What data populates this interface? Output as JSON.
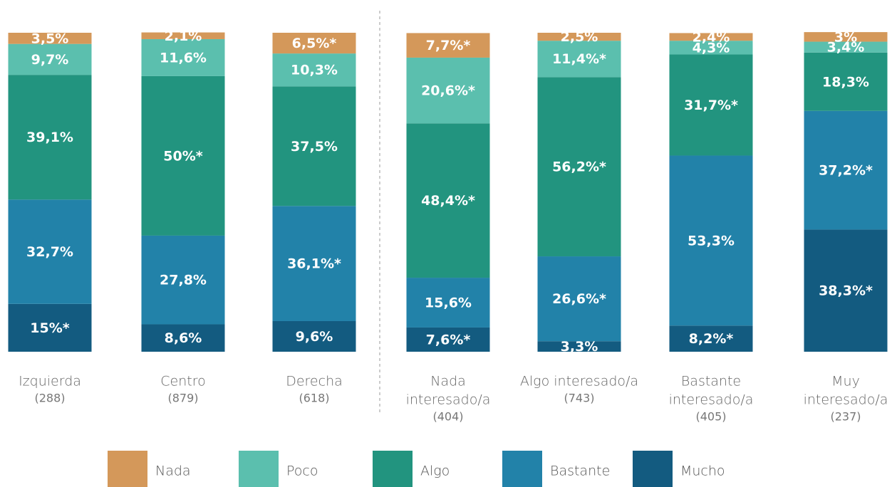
{
  "chart_data": {
    "type": "stacked_bar",
    "categories": [
      [
        "Izquierda"
      ],
      [
        "Centro"
      ],
      [
        "Derecha"
      ],
      [
        "Nada",
        "interesado/a"
      ],
      [
        "Algo interesado/a"
      ],
      [
        "Bastante",
        "interesado/a"
      ],
      [
        "Muy",
        "interesado/a"
      ]
    ],
    "sample_sizes": [
      "(288)",
      "(879)",
      "(618)",
      "(404)",
      "(743)",
      "(405)",
      "(237)"
    ],
    "ylim": [
      0,
      100
    ],
    "series": [
      {
        "name": "Mucho",
        "color": "#135b80",
        "values": [
          15,
          8.6,
          9.6,
          7.6,
          3.3,
          8.2,
          38.3
        ],
        "value_labels": [
          "15%*",
          "8,6%",
          "9,6%",
          "7,6%*",
          "3,3%",
          "8,2%*",
          "38,3%*"
        ]
      },
      {
        "name": "Bastante",
        "color": "#2282a9",
        "values": [
          32.7,
          27.8,
          36.1,
          15.6,
          26.6,
          53.3,
          37.2
        ],
        "value_labels": [
          "32,7%",
          "27,8%",
          "36,1%*",
          "15,6%",
          "26,6%*",
          "53,3%",
          "37,2%*"
        ]
      },
      {
        "name": "Algo",
        "color": "#22947f",
        "values": [
          39.1,
          50,
          37.5,
          48.4,
          56.2,
          31.7,
          18.3
        ],
        "value_labels": [
          "39,1%",
          "50%*",
          "37,5%",
          "48,4%*",
          "56,2%*",
          "31,7%*",
          "18,3%"
        ]
      },
      {
        "name": "Poco",
        "color": "#5bbfae",
        "values": [
          9.7,
          11.6,
          10.3,
          20.6,
          11.4,
          4.3,
          3.4
        ],
        "value_labels": [
          "9,7%",
          "11,6%",
          "10,3%",
          "20,6%*",
          "11,4%*",
          "4,3%",
          "3,4%"
        ]
      },
      {
        "name": "Nada",
        "color": "#d4985a",
        "values": [
          3.5,
          2.1,
          6.5,
          7.7,
          2.5,
          2.4,
          3
        ],
        "value_labels": [
          "3,5%",
          "2,1%",
          "6,5%*",
          "7,7%*",
          "2,5%",
          "2,4%",
          "3%"
        ]
      }
    ]
  }
}
